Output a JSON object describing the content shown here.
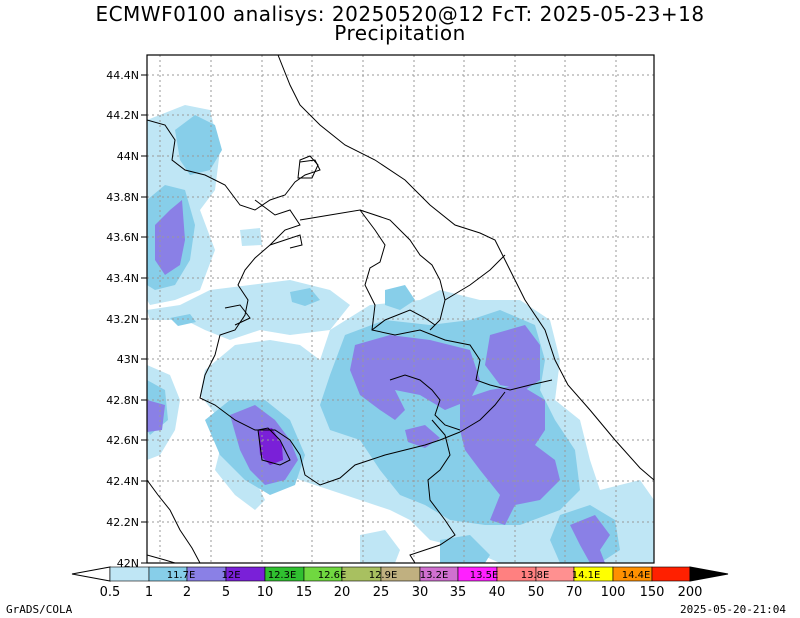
{
  "title": "ECMWF0100 analisys: 20250520@12 FcT: 2025-05-23+18",
  "subtitle": "Precipitation",
  "lat_labels": [
    "44.4N",
    "44.2N",
    "44N",
    "43.8N",
    "43.6N",
    "43.4N",
    "43.2N",
    "43N",
    "42.8N",
    "42.6N",
    "42.4N",
    "42.2N",
    "42N"
  ],
  "lon_labels": [
    "11.7E",
    "12E",
    "12.3E",
    "12.6E",
    "12.9E",
    "13.2E",
    "13.5E",
    "13.8E",
    "14.1E",
    "14.4E"
  ],
  "colorbar": {
    "ticks": [
      "0.5",
      "1",
      "2",
      "5",
      "10",
      "15",
      "20",
      "25",
      "30",
      "35",
      "40",
      "50",
      "70",
      "100",
      "150",
      "200"
    ],
    "colors": [
      "#ffffff",
      "#bfe6f5",
      "#87cee9",
      "#8a80e6",
      "#7a20d8",
      "#30c030",
      "#70d840",
      "#a8c060",
      "#c0b080",
      "#d070d0",
      "#ff20ff",
      "#ff8080",
      "#ff9090",
      "#ffff00",
      "#ff9000",
      "#ff2000",
      "#a00000",
      "#000000"
    ]
  },
  "footer_left": "GrADS/COLA",
  "footer_right": "2025-05-20-21:04"
}
